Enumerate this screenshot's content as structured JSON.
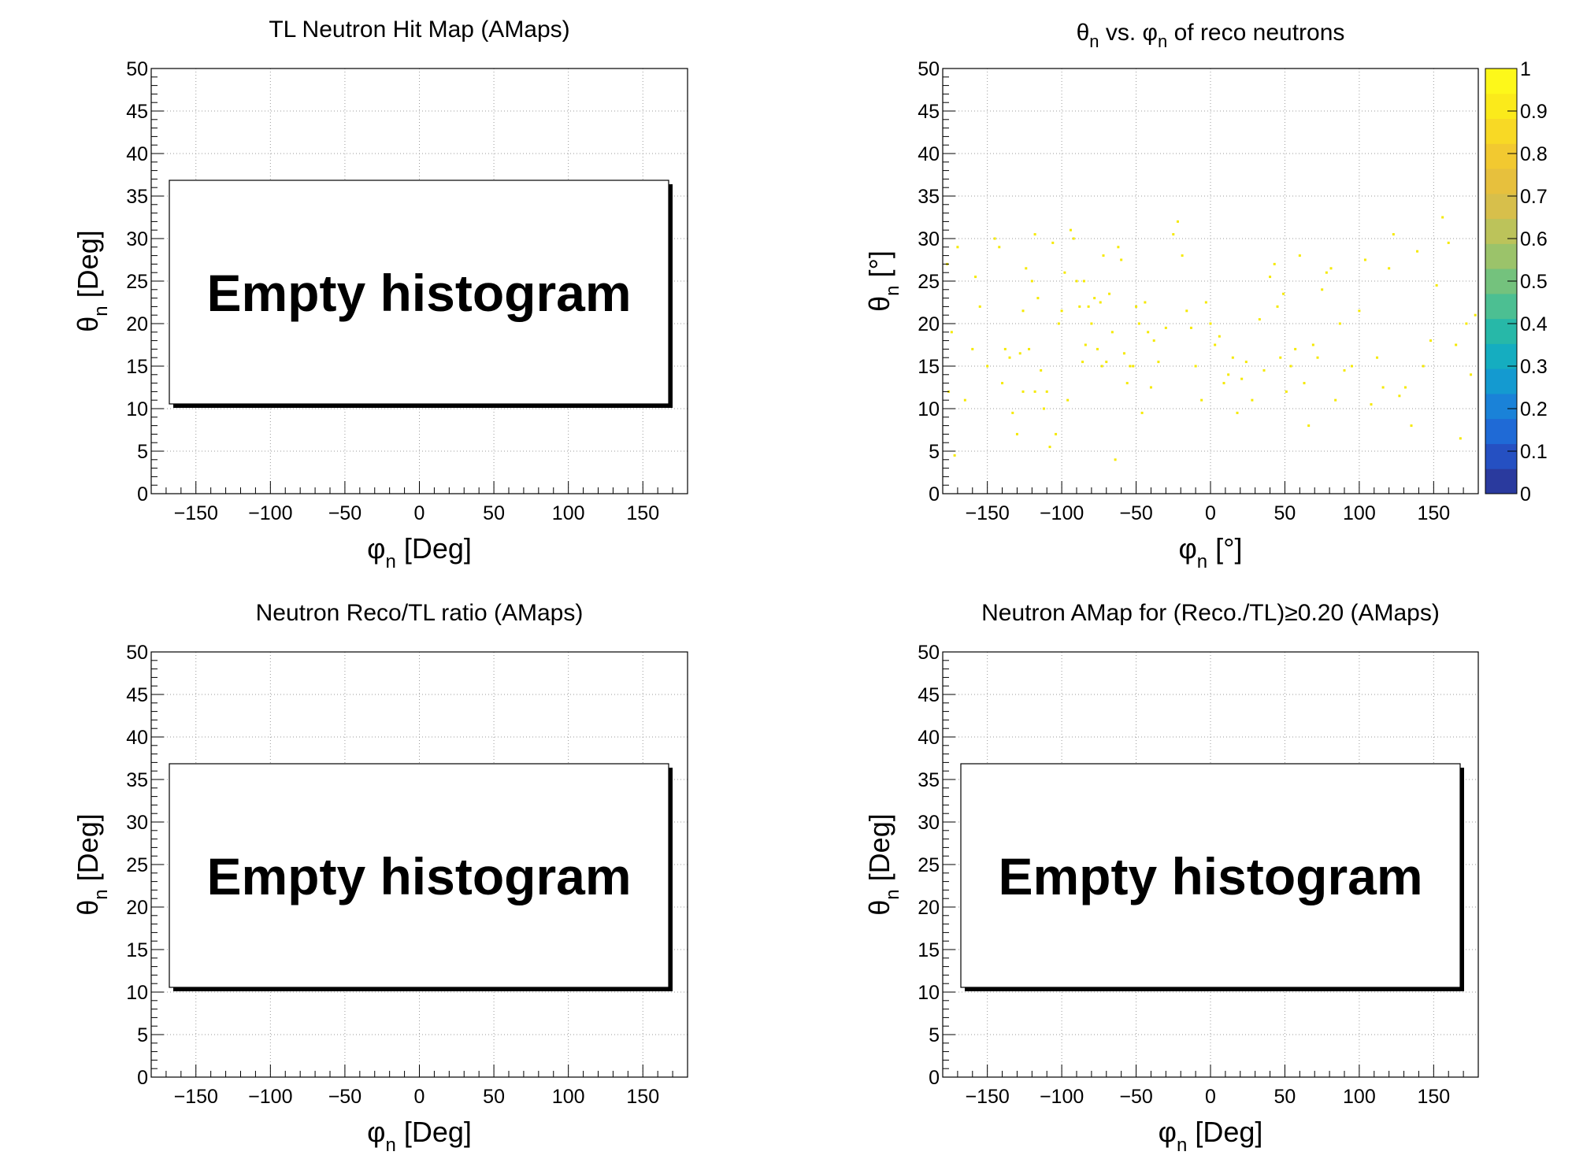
{
  "colors": {
    "frame": "#000000",
    "grid": "#9a9a9a",
    "point": "#f5e900",
    "shadow": "#000000",
    "palette": [
      "#2a3a9e",
      "#2550c2",
      "#1f6ad6",
      "#1a82d8",
      "#149ad0",
      "#15adc0",
      "#27b8a8",
      "#4cbf92",
      "#74c27d",
      "#9bc36a",
      "#bcc35a",
      "#d7bf4b",
      "#e7c03d",
      "#f2c930",
      "#f8d925",
      "#fbea1b",
      "#fdf81a"
    ]
  },
  "chart_data": [
    {
      "type": "heatmap",
      "title": "TL Neutron Hit Map (AMaps)",
      "xlabel": "φ",
      "xlabel_sub": "n",
      "xlabel_unit": " [Deg]",
      "ylabel": "θ",
      "ylabel_sub": "n",
      "ylabel_unit": " [Deg]",
      "xlim": [
        -180,
        180
      ],
      "ylim": [
        0,
        50
      ],
      "xticks": [
        -150,
        -100,
        -50,
        0,
        50,
        100,
        150
      ],
      "xtick_labels": [
        "−150",
        "−100",
        "−50",
        "0",
        "50",
        "100",
        "150"
      ],
      "yticks": [
        0,
        5,
        10,
        15,
        20,
        25,
        30,
        35,
        40,
        45,
        50
      ],
      "ytick_labels": [
        "0",
        "5",
        "10",
        "15",
        "20",
        "25",
        "30",
        "35",
        "40",
        "45",
        "50"
      ],
      "grid": true,
      "empty": true,
      "empty_text": "Empty histogram",
      "points": []
    },
    {
      "type": "heatmap",
      "title_parts": [
        "θ",
        "n",
        " vs.   ",
        "φ",
        "n",
        " of reco neutrons"
      ],
      "xlabel": "φ",
      "xlabel_sub": "n",
      "xlabel_unit": " [°]",
      "ylabel": "θ",
      "ylabel_sub": "n",
      "ylabel_unit": " [°]",
      "xlim": [
        -180,
        180
      ],
      "ylim": [
        0,
        50
      ],
      "xticks": [
        -150,
        -100,
        -50,
        0,
        50,
        100,
        150
      ],
      "xtick_labels": [
        "−150",
        "−100",
        "−50",
        "0",
        "50",
        "100",
        "150"
      ],
      "yticks": [
        0,
        5,
        10,
        15,
        20,
        25,
        30,
        35,
        40,
        45,
        50
      ],
      "ytick_labels": [
        "0",
        "5",
        "10",
        "15",
        "20",
        "25",
        "30",
        "35",
        "40",
        "45",
        "50"
      ],
      "grid": true,
      "empty": false,
      "zlim": [
        0,
        1
      ],
      "zticks": [
        0,
        0.1,
        0.2,
        0.3,
        0.4,
        0.5,
        0.6,
        0.7,
        0.8,
        0.9,
        1
      ],
      "ztick_labels": [
        "0",
        "0.1",
        "0.2",
        "0.3",
        "0.4",
        "0.5",
        "0.6",
        "0.7",
        "0.8",
        "0.9",
        "1"
      ],
      "point_value": 1,
      "points": [
        [
          -177,
          27
        ],
        [
          -174,
          19
        ],
        [
          -170,
          29
        ],
        [
          -176,
          12
        ],
        [
          -172,
          4.5
        ],
        [
          -165,
          11
        ],
        [
          -160,
          17
        ],
        [
          -158,
          25.5
        ],
        [
          -155,
          22
        ],
        [
          -150,
          15
        ],
        [
          -145,
          30
        ],
        [
          -142,
          29
        ],
        [
          -138,
          17
        ],
        [
          -135,
          16
        ],
        [
          -133,
          9.5
        ],
        [
          -130,
          7
        ],
        [
          -128,
          16.5
        ],
        [
          -126,
          21.5
        ],
        [
          -124,
          26.5
        ],
        [
          -122,
          17
        ],
        [
          -120,
          25
        ],
        [
          -118,
          30.5
        ],
        [
          -116,
          23
        ],
        [
          -114,
          14.5
        ],
        [
          -112,
          10
        ],
        [
          -110,
          12
        ],
        [
          -108,
          5.5
        ],
        [
          -106,
          29.5
        ],
        [
          -104,
          7
        ],
        [
          -102,
          20
        ],
        [
          -100,
          21.5
        ],
        [
          -98,
          26
        ],
        [
          -96,
          11
        ],
        [
          -94,
          31
        ],
        [
          -92,
          30
        ],
        [
          -90,
          25
        ],
        [
          -88,
          22
        ],
        [
          -86,
          15.5
        ],
        [
          -84,
          17.5
        ],
        [
          -82,
          22
        ],
        [
          -80,
          20
        ],
        [
          -78,
          23
        ],
        [
          -76,
          17
        ],
        [
          -74,
          22.5
        ],
        [
          -72,
          28
        ],
        [
          -70,
          15.5
        ],
        [
          -68,
          23.5
        ],
        [
          -66,
          19
        ],
        [
          -64,
          4
        ],
        [
          -62,
          29
        ],
        [
          -60,
          27.5
        ],
        [
          -58,
          16.5
        ],
        [
          -56,
          13
        ],
        [
          -54,
          15
        ],
        [
          -52,
          15
        ],
        [
          -50,
          22
        ],
        [
          -48,
          20
        ],
        [
          -46,
          9.5
        ],
        [
          -44,
          22.5
        ],
        [
          -42,
          19
        ],
        [
          -40,
          12.5
        ],
        [
          -38,
          18
        ],
        [
          -35,
          15.5
        ],
        [
          -30,
          19.5
        ],
        [
          -25,
          30.5
        ],
        [
          -22,
          32
        ],
        [
          -19,
          28
        ],
        [
          -16,
          21.5
        ],
        [
          -13,
          19.5
        ],
        [
          -10,
          15
        ],
        [
          -6,
          11
        ],
        [
          -3,
          22.5
        ],
        [
          0,
          20
        ],
        [
          3,
          17.5
        ],
        [
          6,
          18.5
        ],
        [
          9,
          13
        ],
        [
          12,
          14
        ],
        [
          15,
          16
        ],
        [
          18,
          9.5
        ],
        [
          21,
          13.5
        ],
        [
          24,
          15.5
        ],
        [
          28,
          11
        ],
        [
          33,
          20.5
        ],
        [
          36,
          14.5
        ],
        [
          40,
          25.5
        ],
        [
          43,
          27
        ],
        [
          45,
          22
        ],
        [
          47,
          16
        ],
        [
          49,
          23.5
        ],
        [
          51,
          12
        ],
        [
          54,
          15
        ],
        [
          57,
          17
        ],
        [
          60,
          28
        ],
        [
          63,
          13
        ],
        [
          66,
          8
        ],
        [
          69,
          17.5
        ],
        [
          72,
          16
        ],
        [
          75,
          24
        ],
        [
          78,
          26
        ],
        [
          81,
          26.5
        ],
        [
          84,
          11
        ],
        [
          87,
          20
        ],
        [
          90,
          14.5
        ],
        [
          95,
          15
        ],
        [
          100,
          21.5
        ],
        [
          104,
          27.5
        ],
        [
          108,
          10.5
        ],
        [
          112,
          16
        ],
        [
          116,
          12.5
        ],
        [
          120,
          26.5
        ],
        [
          123,
          30.5
        ],
        [
          127,
          11.5
        ],
        [
          131,
          12.5
        ],
        [
          135,
          8
        ],
        [
          139,
          28.5
        ],
        [
          143,
          15
        ],
        [
          148,
          18
        ],
        [
          152,
          24.5
        ],
        [
          156,
          32.5
        ],
        [
          160,
          29.5
        ],
        [
          165,
          17.5
        ],
        [
          168,
          6.5
        ],
        [
          172,
          20
        ],
        [
          175,
          14
        ],
        [
          178,
          21
        ],
        [
          -126,
          12
        ],
        [
          -118,
          12
        ],
        [
          -73,
          15
        ],
        [
          -85,
          25
        ],
        [
          -140,
          13
        ]
      ]
    },
    {
      "type": "heatmap",
      "title": "Neutron Reco/TL ratio (AMaps)",
      "xlabel": "φ",
      "xlabel_sub": "n",
      "xlabel_unit": " [Deg]",
      "ylabel": "θ",
      "ylabel_sub": "n",
      "ylabel_unit": " [Deg]",
      "xlim": [
        -180,
        180
      ],
      "ylim": [
        0,
        50
      ],
      "xticks": [
        -150,
        -100,
        -50,
        0,
        50,
        100,
        150
      ],
      "xtick_labels": [
        "−150",
        "−100",
        "−50",
        "0",
        "50",
        "100",
        "150"
      ],
      "yticks": [
        0,
        5,
        10,
        15,
        20,
        25,
        30,
        35,
        40,
        45,
        50
      ],
      "ytick_labels": [
        "0",
        "5",
        "10",
        "15",
        "20",
        "25",
        "30",
        "35",
        "40",
        "45",
        "50"
      ],
      "grid": true,
      "empty": true,
      "empty_text": "Empty histogram",
      "points": []
    },
    {
      "type": "heatmap",
      "title": "Neutron AMap for (Reco./TL)≥0.20 (AMaps)",
      "xlabel": "φ",
      "xlabel_sub": "n",
      "xlabel_unit": " [Deg]",
      "ylabel": "θ",
      "ylabel_sub": "n",
      "ylabel_unit": " [Deg]",
      "xlim": [
        -180,
        180
      ],
      "ylim": [
        0,
        50
      ],
      "xticks": [
        -150,
        -100,
        -50,
        0,
        50,
        100,
        150
      ],
      "xtick_labels": [
        "−150",
        "−100",
        "−50",
        "0",
        "50",
        "100",
        "150"
      ],
      "yticks": [
        0,
        5,
        10,
        15,
        20,
        25,
        30,
        35,
        40,
        45,
        50
      ],
      "ytick_labels": [
        "0",
        "5",
        "10",
        "15",
        "20",
        "25",
        "30",
        "35",
        "40",
        "45",
        "50"
      ],
      "grid": true,
      "empty": true,
      "empty_text": "Empty histogram",
      "points": []
    }
  ]
}
